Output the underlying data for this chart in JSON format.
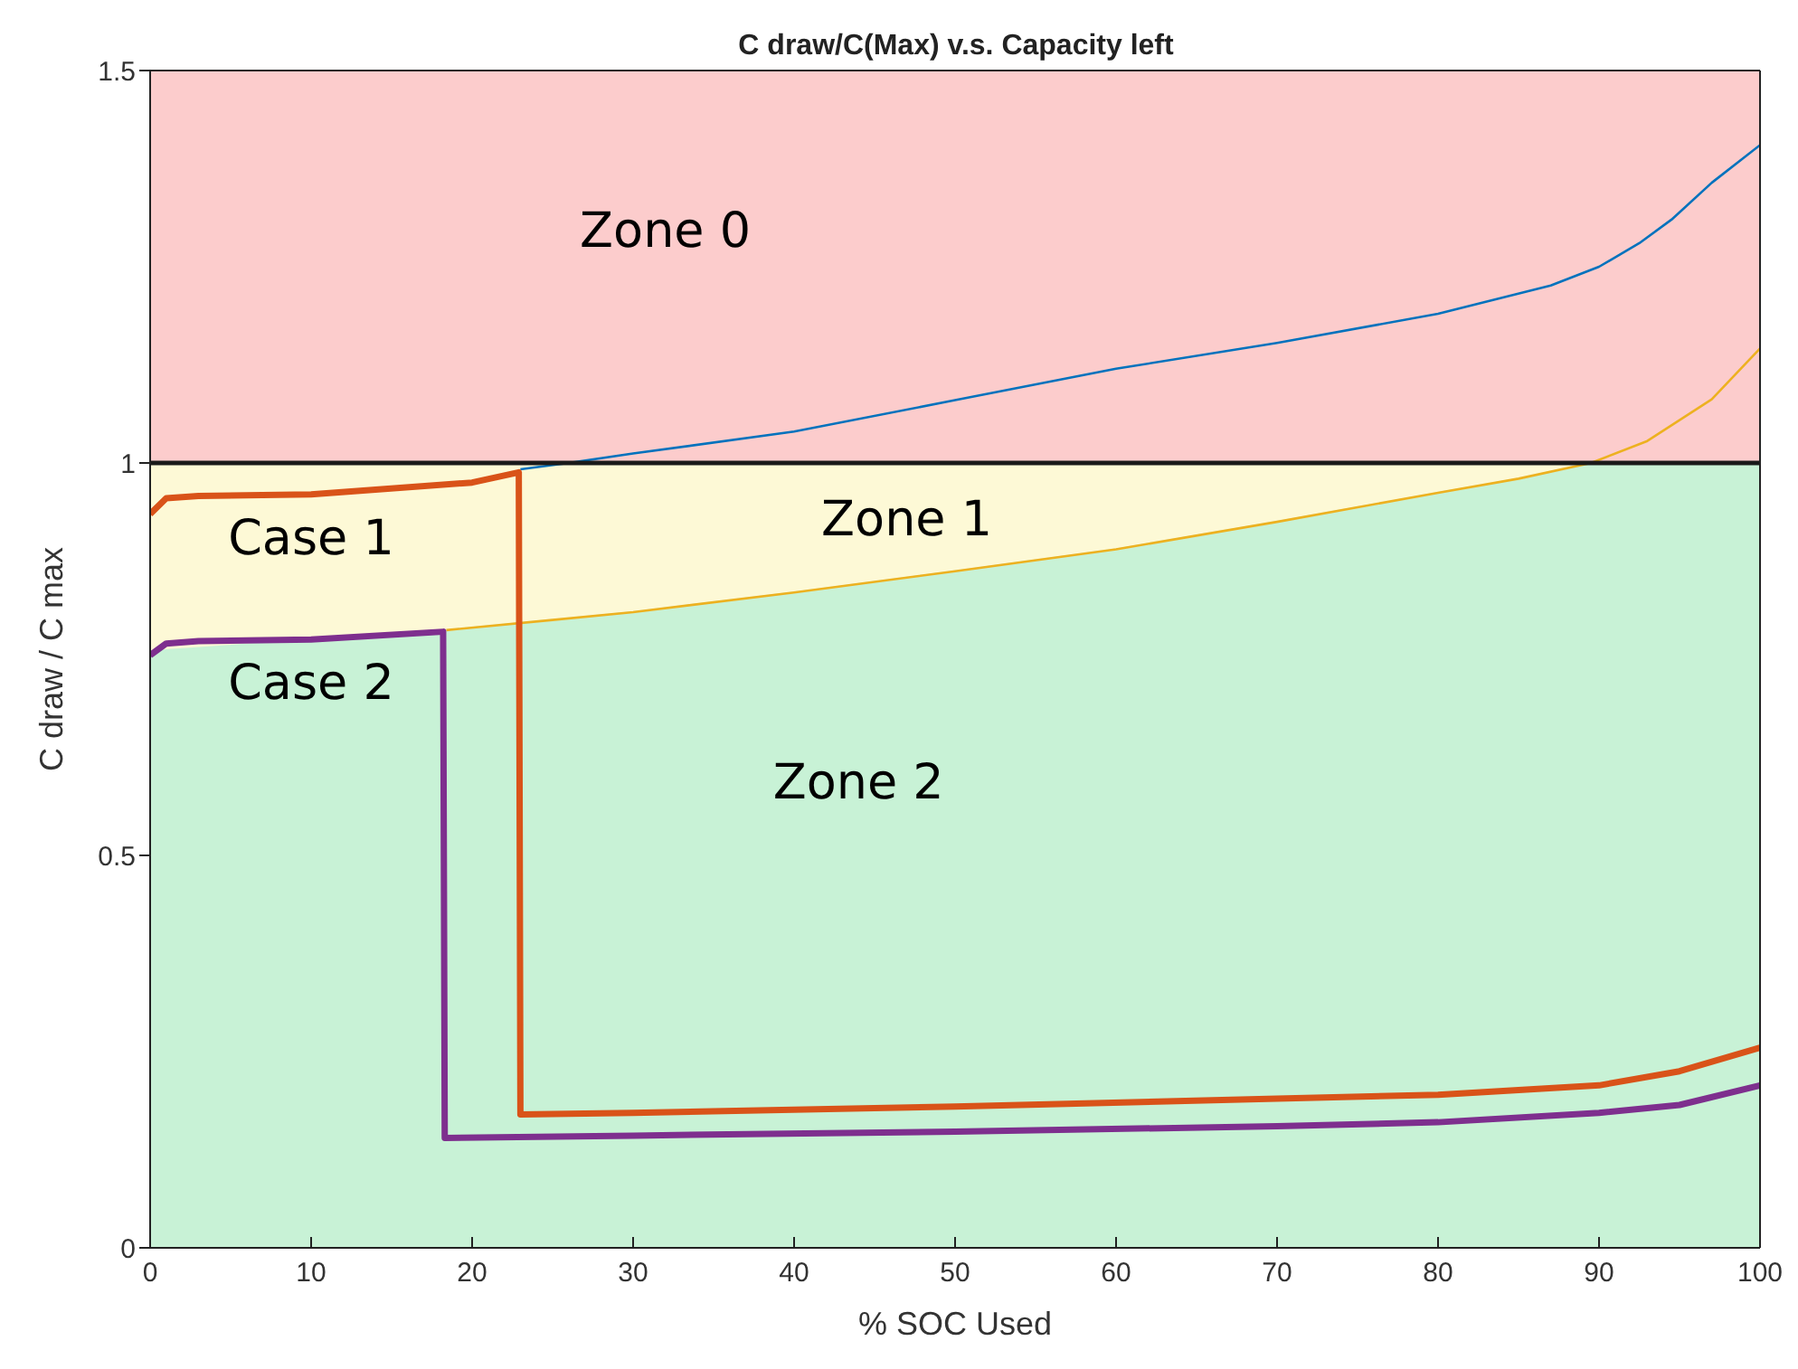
{
  "chart_data": {
    "type": "line",
    "title": "C draw/C(Max) v.s. Capacity left",
    "xlabel": "% SOC Used",
    "ylabel": "C draw / C max",
    "xlim": [
      0,
      100
    ],
    "xticks": [
      0,
      10,
      20,
      30,
      40,
      50,
      60,
      70,
      80,
      90,
      100
    ],
    "ylim": [
      0,
      1.5
    ],
    "yticks": [
      0,
      0.5,
      1,
      1.5
    ],
    "bands": [
      {
        "axis": "y",
        "from": 0.75,
        "to": 1,
        "color": "#fdf9d6",
        "label": "Zone 1"
      },
      {
        "axis": "y",
        "from": 1,
        "to": 1.5,
        "color": "#fccccc",
        "label": "Zone 0"
      }
    ],
    "ref_lines": [
      {
        "axis": "y",
        "value": 1,
        "color": "#1a1a1a"
      }
    ],
    "series": [
      {
        "type": "area",
        "name": "Zone 2",
        "color": "#c8f2d6",
        "x": [
          0,
          18.4,
          25,
          30,
          40,
          50,
          60,
          70,
          80,
          85,
          89.5,
          100
        ],
        "values": [
          0.76,
          0.787,
          0.8,
          0.81,
          0.835,
          0.862,
          0.89,
          0.925,
          0.962,
          0.98,
          1.0,
          1.0
        ]
      },
      {
        "color": "#0072bd",
        "x": [
          23,
          26,
          30,
          40,
          50,
          60,
          70,
          80,
          87,
          90,
          92.5,
          94.5,
          97,
          100
        ],
        "values": [
          0.992,
          1.0,
          1.012,
          1.04,
          1.08,
          1.12,
          1.153,
          1.19,
          1.226,
          1.25,
          1.28,
          1.31,
          1.357,
          1.405
        ]
      },
      {
        "color": "#edb120",
        "x": [
          18.4,
          25,
          30,
          40,
          50,
          60,
          70,
          80,
          85,
          89.5,
          93,
          97,
          100
        ],
        "values": [
          0.787,
          0.8,
          0.81,
          0.835,
          0.862,
          0.89,
          0.925,
          0.962,
          0.98,
          1.0,
          1.028,
          1.081,
          1.146
        ]
      },
      {
        "name": "Case 1",
        "color": "#d95319",
        "x": [
          0,
          1,
          3,
          10,
          20,
          22.9,
          23,
          30,
          50,
          70,
          80,
          90,
          95,
          100
        ],
        "values": [
          0.935,
          0.955,
          0.958,
          0.96,
          0.975,
          0.988,
          0.17,
          0.172,
          0.18,
          0.19,
          0.195,
          0.207,
          0.225,
          0.255
        ]
      },
      {
        "name": "Case 2",
        "color": "#7e2f8e",
        "x": [
          0,
          1,
          3,
          10,
          18.2,
          18.3,
          30,
          50,
          70,
          80,
          90,
          95,
          100
        ],
        "values": [
          0.755,
          0.77,
          0.773,
          0.775,
          0.785,
          0.14,
          0.143,
          0.148,
          0.155,
          0.16,
          0.172,
          0.182,
          0.207
        ]
      }
    ]
  }
}
